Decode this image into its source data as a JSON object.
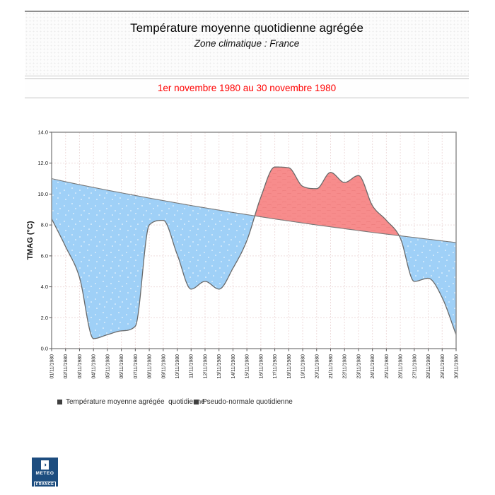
{
  "header": {
    "title": "Température moyenne quotidienne agrégée",
    "subtitle": "Zone climatique : France"
  },
  "period_banner": {
    "text": "1er novembre 1980 au 30 novembre 1980",
    "text_color": "#ff0000"
  },
  "chart_data": {
    "type": "area",
    "title": "Température moyenne quotidienne agrégée",
    "xlabel": "",
    "ylabel": "TMAG (°C)",
    "ylim": [
      0.0,
      14.0
    ],
    "ytick_step": 2.0,
    "grid": true,
    "legend_position": "bottom",
    "categories": [
      "01/11/1980",
      "02/11/1980",
      "03/11/1980",
      "04/11/1980",
      "05/11/1980",
      "06/11/1980",
      "07/11/1980",
      "08/11/1980",
      "09/11/1980",
      "10/11/1980",
      "11/11/1980",
      "12/11/1980",
      "13/11/1980",
      "14/11/1980",
      "15/11/1980",
      "16/11/1980",
      "17/11/1980",
      "18/11/1980",
      "19/11/1980",
      "20/11/1980",
      "21/11/1980",
      "22/11/1980",
      "23/11/1980",
      "24/11/1980",
      "25/11/1980",
      "26/11/1980",
      "27/11/1980",
      "28/11/1980",
      "29/11/1980",
      "30/11/1980"
    ],
    "series": [
      {
        "name": "Température moyenne agrégée  quotidienne",
        "values": [
          8.4,
          6.6,
          4.6,
          0.65,
          0.9,
          1.15,
          1.45,
          8.0,
          8.3,
          6.1,
          3.85,
          4.35,
          3.85,
          5.2,
          7.0,
          9.8,
          11.75,
          11.7,
          10.5,
          10.35,
          11.4,
          10.75,
          11.2,
          9.25,
          8.3,
          7.15,
          4.35,
          4.55,
          3.3,
          0.9
        ]
      },
      {
        "name": "Pseudo-normale quotidienne",
        "values": [
          11.0,
          10.8,
          10.61,
          10.43,
          10.25,
          10.08,
          9.91,
          9.74,
          9.58,
          9.42,
          9.26,
          9.11,
          8.96,
          8.81,
          8.67,
          8.53,
          8.39,
          8.26,
          8.13,
          8.0,
          7.88,
          7.76,
          7.64,
          7.52,
          7.41,
          7.3,
          7.19,
          7.08,
          6.97,
          6.86
        ]
      }
    ],
    "colors": {
      "below_normal_fill": "#9fd0f7",
      "above_normal_fill": "#f78c8c",
      "temperature_stroke": "#6a6a6a",
      "normale_stroke": "#787878",
      "grid": "#eedcdc",
      "axis": "#909090",
      "tick_text": "#222222"
    }
  },
  "legend": {
    "items": [
      {
        "label": "Température moyenne agrégée  quotidienne"
      },
      {
        "label": "Pseudo-normale quotidienne"
      }
    ]
  },
  "logo": {
    "icon_glyph": "◑",
    "line1": "METEO",
    "line2": "FRANCE",
    "background": "#1d4d7f"
  }
}
